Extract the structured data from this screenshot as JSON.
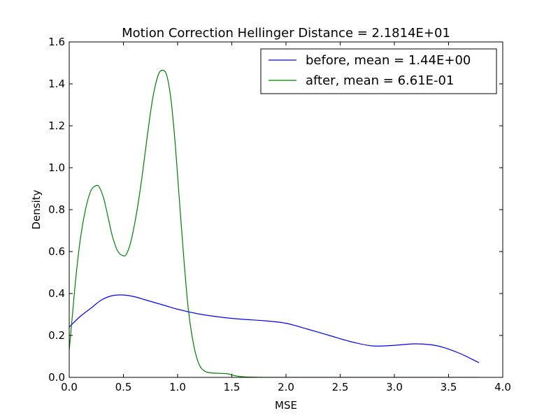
{
  "chart_data": {
    "type": "line",
    "title": "Motion Correction Hellinger Distance = 2.1814E+01",
    "xlabel": "MSE",
    "ylabel": "Density",
    "xlim": [
      0.0,
      4.0
    ],
    "ylim": [
      0.0,
      1.6
    ],
    "xticks": [
      "0.0",
      "0.5",
      "1.0",
      "1.5",
      "2.0",
      "2.5",
      "3.0",
      "3.5",
      "4.0"
    ],
    "yticks": [
      "0.0",
      "0.2",
      "0.4",
      "0.6",
      "0.8",
      "1.0",
      "1.2",
      "1.4",
      "1.6"
    ],
    "grid": false,
    "legend_position": "top-right",
    "series": [
      {
        "name": "before, mean = 1.44E+00",
        "color": "#0000ff",
        "x": [
          0.0,
          0.1,
          0.2,
          0.3,
          0.4,
          0.5,
          0.6,
          0.7,
          0.8,
          0.9,
          1.0,
          1.2,
          1.4,
          1.6,
          1.8,
          2.0,
          2.2,
          2.4,
          2.6,
          2.8,
          3.0,
          3.2,
          3.4,
          3.6,
          3.78
        ],
        "y": [
          0.24,
          0.29,
          0.33,
          0.37,
          0.39,
          0.393,
          0.385,
          0.37,
          0.355,
          0.34,
          0.325,
          0.302,
          0.287,
          0.277,
          0.27,
          0.258,
          0.23,
          0.2,
          0.17,
          0.15,
          0.153,
          0.16,
          0.15,
          0.115,
          0.07
        ]
      },
      {
        "name": "after, mean = 6.61E-01",
        "color": "#008000",
        "x": [
          0.0,
          0.03,
          0.06,
          0.1,
          0.15,
          0.2,
          0.25,
          0.28,
          0.32,
          0.36,
          0.4,
          0.45,
          0.5,
          0.53,
          0.57,
          0.62,
          0.67,
          0.72,
          0.77,
          0.82,
          0.86,
          0.9,
          0.94,
          0.98,
          1.02,
          1.06,
          1.1,
          1.15,
          1.2,
          1.25,
          1.3,
          1.35,
          1.45,
          1.5,
          1.55,
          1.6,
          1.7,
          1.9,
          2.5,
          3.0,
          3.5,
          3.78
        ],
        "y": [
          0.13,
          0.3,
          0.47,
          0.65,
          0.8,
          0.89,
          0.915,
          0.905,
          0.85,
          0.76,
          0.67,
          0.6,
          0.58,
          0.59,
          0.65,
          0.78,
          0.95,
          1.15,
          1.33,
          1.44,
          1.465,
          1.44,
          1.32,
          1.1,
          0.82,
          0.55,
          0.32,
          0.15,
          0.06,
          0.03,
          0.022,
          0.02,
          0.018,
          0.012,
          0.006,
          0.003,
          0.001,
          0.0,
          0.0,
          0.0,
          0.0,
          0.0
        ]
      }
    ]
  }
}
